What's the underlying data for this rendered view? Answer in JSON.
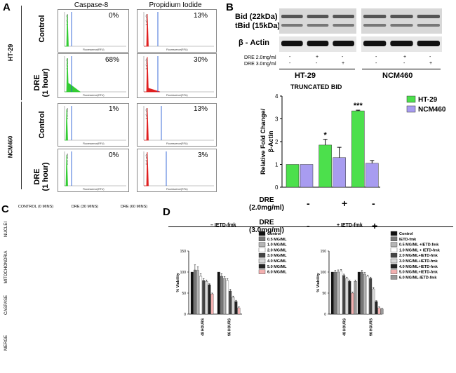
{
  "panel_letters": {
    "a": "A",
    "b": "B",
    "c": "C",
    "d": "D"
  },
  "panel_a": {
    "col_titles": [
      "Caspase-8",
      "Propidium Iodide"
    ],
    "cell_lines": [
      "HT-29",
      "NCM460"
    ],
    "rows": [
      "Control",
      "DRE\n(1 hour)",
      "Control",
      "DRE\n(1 hour)"
    ],
    "percentages": [
      [
        "0%",
        "13%"
      ],
      [
        "68%",
        "30%"
      ],
      [
        "1%",
        "13%"
      ],
      [
        "0%",
        "3%"
      ]
    ],
    "y_axis_label": "# of cells",
    "x_axis_label": "Fluorescence(RFU)",
    "caspase_color": "#33cc33",
    "pi_color": "#e02020",
    "gate_color": "#2a5fd6"
  },
  "panel_b": {
    "blot_labels": {
      "bid": "Bid (22kDa)",
      "tbid": "tBid (15kDa)",
      "actin": "β - Actin"
    },
    "treatments": [
      {
        "label": "DRE 2.0mg/ml",
        "marks": [
          "-",
          "+",
          "-",
          "-",
          "+",
          "-"
        ]
      },
      {
        "label": "DRE 3.0mg/ml",
        "marks": [
          "-",
          "-",
          "+",
          "-",
          "-",
          "+"
        ]
      }
    ],
    "groups": [
      "HT-29",
      "NCM460"
    ],
    "chart_title": "TRUNCATED BID",
    "ylabel": "Relative Fold Change/\nβ-Actin",
    "bottom_rows": [
      {
        "label": "DRE\n(2.0mg/ml)",
        "marks": [
          "-",
          "+",
          "-"
        ]
      },
      {
        "label": "DRE\n(3.0mg/ml)",
        "marks": [
          "-",
          "-",
          "+"
        ]
      }
    ],
    "significance": [
      "*",
      "***"
    ]
  },
  "panel_c": {
    "col_titles": [
      "CONTROL (0 MINS)",
      "DRE (30 MINS)",
      "DRE (60 MINS)"
    ],
    "row_titles": [
      "NUCLEI",
      "MITOCHONDRIA",
      "CASPASE",
      "MERGE"
    ]
  },
  "panel_d": {
    "left_title": "– IETD-fmk",
    "right_title": "+ IETD-fmk",
    "ylabel": "% Viability",
    "timepoints": [
      "48 HOURS",
      "96 HOURS"
    ]
  },
  "chart_data": [
    {
      "type": "bar",
      "title": "TRUNCATED BID",
      "ylabel": "Relative Fold Change/ β-Actin",
      "categories": [
        "Control",
        "DRE 2.0mg/ml",
        "DRE 3.0mg/ml"
      ],
      "ylim": [
        0,
        4
      ],
      "yticks": [
        0,
        1,
        2,
        3,
        4
      ],
      "legend_position": "right",
      "series": [
        {
          "name": "HT-29",
          "color": "#4ce04c",
          "values": [
            1.0,
            1.85,
            3.35
          ],
          "errors": [
            0,
            0.25,
            0.03
          ]
        },
        {
          "name": "NCM460",
          "color": "#a89cf0",
          "values": [
            1.0,
            1.3,
            1.05
          ],
          "errors": [
            0,
            0.45,
            0.12
          ]
        }
      ]
    },
    {
      "type": "bar",
      "title": "– IETD-fmk",
      "ylabel": "% Viability",
      "categories": [
        "48 HOURS",
        "96 HOURS"
      ],
      "ylim": [
        0,
        150
      ],
      "yticks": [
        0,
        50,
        100,
        150
      ],
      "series": [
        {
          "name": "Control",
          "color": "#111111",
          "values": [
            100,
            100
          ],
          "errors": [
            0,
            0
          ]
        },
        {
          "name": "0.5 MG/ML",
          "color": "#777777",
          "values": [
            105,
            90
          ],
          "errors": [
            12,
            6
          ]
        },
        {
          "name": "1.0 MG/ML",
          "color": "#b5b5b5",
          "values": [
            104,
            85
          ],
          "errors": [
            8,
            4
          ]
        },
        {
          "name": "2.0 MG/ML",
          "color": "#ffffff",
          "values": [
            90,
            80
          ],
          "errors": [
            6,
            4
          ]
        },
        {
          "name": "3.0 MG/ML",
          "color": "#444444",
          "values": [
            80,
            55
          ],
          "errors": [
            4,
            4
          ]
        },
        {
          "name": "4.0 MG/ML",
          "color": "#d8d8d8",
          "values": [
            78,
            40
          ],
          "errors": [
            3,
            3
          ]
        },
        {
          "name": "5.0 MG/ML",
          "color": "#222222",
          "values": [
            70,
            30
          ],
          "errors": [
            2,
            3
          ]
        },
        {
          "name": "6.0 MG/ML",
          "color": "#f3b0b0",
          "values": [
            48,
            15
          ],
          "errors": [
            2,
            2
          ]
        }
      ]
    },
    {
      "type": "bar",
      "title": "+ IETD-fmk",
      "ylabel": "% Viability",
      "categories": [
        "48 HOURS",
        "96 HOURS"
      ],
      "ylim": [
        0,
        150
      ],
      "yticks": [
        0,
        50,
        100,
        150
      ],
      "series": [
        {
          "name": "Control",
          "color": "#111111",
          "values": [
            100,
            100
          ],
          "errors": [
            0,
            0
          ]
        },
        {
          "name": "IETD-fmk",
          "color": "#777777",
          "values": [
            100,
            100
          ],
          "errors": [
            4,
            4
          ]
        },
        {
          "name": "0.5 MG/ML +IETD-fmk",
          "color": "#b5b5b5",
          "values": [
            100,
            95
          ],
          "errors": [
            5,
            4
          ]
        },
        {
          "name": "1.0 MG/ML + IETD-fmk",
          "color": "#ffffff",
          "values": [
            102,
            90
          ],
          "errors": [
            4,
            3
          ]
        },
        {
          "name": "2.0 MG/ML+IETD-fmk",
          "color": "#444444",
          "values": [
            92,
            85
          ],
          "errors": [
            3,
            3
          ]
        },
        {
          "name": "3.0 MG/ML+IETD-fmk",
          "color": "#d8d8d8",
          "values": [
            85,
            60
          ],
          "errors": [
            3,
            3
          ]
        },
        {
          "name": "4.0 MG/ML+IETD-fmk",
          "color": "#222222",
          "values": [
            78,
            30
          ],
          "errors": [
            3,
            2
          ]
        },
        {
          "name": "5.0 MG/ML+IETD-fmk",
          "color": "#f3b0b0",
          "values": [
            50,
            15
          ],
          "errors": [
            2,
            2
          ]
        },
        {
          "name": "6.0 MG/ML-IETD-fmk",
          "color": "#9a9a9a",
          "values": [
            78,
            12
          ],
          "errors": [
            3,
            2
          ]
        }
      ]
    }
  ]
}
